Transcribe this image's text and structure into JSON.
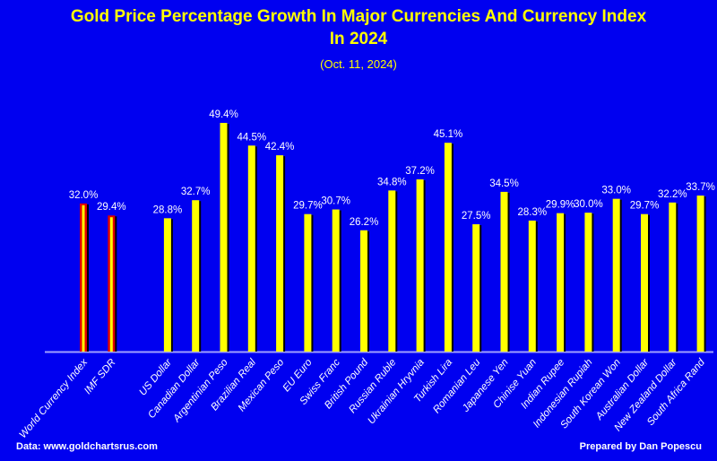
{
  "chart_data": {
    "type": "bar",
    "title_line1": "Gold Price Percentage Growth In Major Currencies And Currency Index",
    "title_line2": "In 2024",
    "subtitle": "(Oct. 11, 2024)",
    "xlabel": "",
    "ylabel": "",
    "ylim": [
      0,
      50
    ],
    "grid": false,
    "categories": [
      "World Currency Index",
      "IMF SDR",
      "",
      "US Dollar",
      "Canadian Dollar",
      "Argentinian Peso",
      "Brazilian Real",
      "Mexican Peso",
      "EU Euro",
      "Swiss Franc",
      "British Pound",
      "Russian Ruble",
      "Ukrainian Hryvnia",
      "Turkish Lira",
      "Romanian Leu",
      "Japanese Yen",
      "Chinise Yuan",
      "Indian Rupee",
      "Indonesian Rupiah",
      "South Korean Won",
      "Australian Dollar",
      "New Zealand Dollar",
      "South Africa Rand"
    ],
    "values": [
      32.0,
      29.4,
      null,
      28.8,
      32.7,
      49.4,
      44.5,
      42.4,
      29.7,
      30.7,
      26.2,
      34.8,
      37.2,
      45.1,
      27.5,
      34.5,
      28.3,
      29.9,
      30.0,
      33.0,
      29.7,
      32.2,
      33.7
    ],
    "value_labels": [
      "32.0%",
      "29.4%",
      "",
      "28.8%",
      "32.7%",
      "49.4%",
      "44.5%",
      "42.4%",
      "29.7%",
      "30.7%",
      "26.2%",
      "34.8%",
      "37.2%",
      "45.1%",
      "27.5%",
      "34.5%",
      "28.3%",
      "29.9%",
      "30.0%",
      "33.0%",
      "29.7%",
      "32.2%",
      "33.7%"
    ],
    "highlight_indices": [
      0,
      1
    ],
    "colors": {
      "background": "#0000f0",
      "bar": "#ffff00",
      "highlight_edge": "#e00000",
      "shadow": "#000000",
      "axis": "#a0a0ff",
      "label": "#ffffff",
      "title": "#ffff00"
    }
  },
  "footer": {
    "source": "Data: www.goldchartsrus.com",
    "credit": "Prepared by Dan Popescu"
  }
}
